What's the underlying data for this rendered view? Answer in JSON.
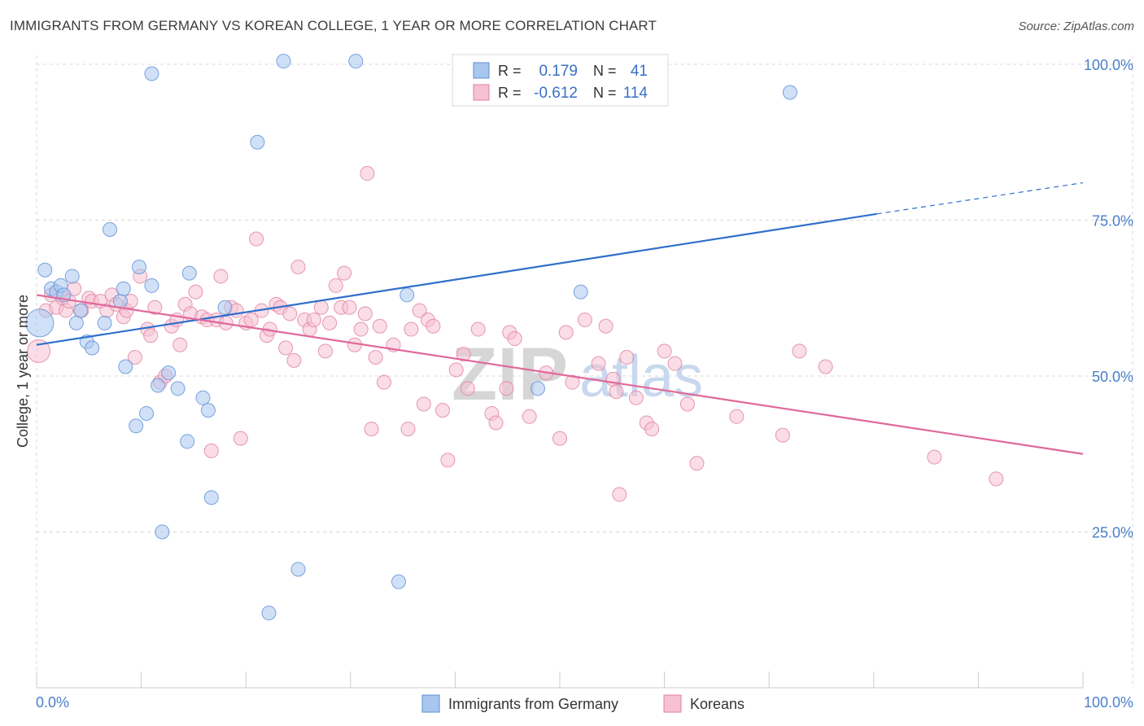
{
  "title": "IMMIGRANTS FROM GERMANY VS KOREAN COLLEGE, 1 YEAR OR MORE CORRELATION CHART",
  "source": "Source: ZipAtlas.com",
  "watermark": {
    "part1": "ZIP",
    "part2": "atlas"
  },
  "colors": {
    "blue_fill": "#a9c6ee",
    "blue_stroke": "#5b8fd6",
    "blue_line": "#2f6fcc",
    "pink_fill": "#f6c1d2",
    "pink_stroke": "#e07fa0",
    "pink_line": "#e0689a",
    "grid": "#d8d8d8",
    "axis_text": "#4a7fc9"
  },
  "stats": {
    "r_label": "R =",
    "n_label": "N =",
    "blue": {
      "r": "0.179",
      "n": "41"
    },
    "pink": {
      "r": "-0.612",
      "n": "114"
    }
  },
  "legend": {
    "blue": "Immigrants from Germany",
    "pink": "Koreans"
  },
  "chart_data": {
    "type": "scatter",
    "title": "IMMIGRANTS FROM GERMANY VS KOREAN COLLEGE, 1 YEAR OR MORE CORRELATION CHART",
    "xlabel": "",
    "ylabel": "College, 1 year or more",
    "xlim": [
      0,
      100
    ],
    "ylim": [
      0,
      102
    ],
    "x_tick_labels": [
      "0.0%",
      "100.0%"
    ],
    "y_ticks": [
      25,
      50,
      75,
      100
    ],
    "y_tick_labels": [
      "25.0%",
      "50.0%",
      "75.0%",
      "100.0%"
    ],
    "grid": true,
    "legend_position": "bottom-center",
    "series": [
      {
        "name": "Immigrants from Germany",
        "color": "blue",
        "trend": {
          "x0": 0,
          "y0": 55,
          "x1": 80.3,
          "y1": 76,
          "dashed_to_x": 100,
          "dashed_to_y": 81
        },
        "points": [
          [
            0.3,
            58.5,
            3
          ],
          [
            0.8,
            67,
            1
          ],
          [
            1.4,
            64,
            1
          ],
          [
            1.9,
            63.5,
            1
          ],
          [
            2.3,
            64.5,
            1
          ],
          [
            2.6,
            63,
            1
          ],
          [
            3.4,
            66,
            1
          ],
          [
            3.8,
            58.5,
            1
          ],
          [
            4.2,
            60.5,
            1
          ],
          [
            4.8,
            55.5,
            1
          ],
          [
            5.3,
            54.5,
            1
          ],
          [
            6.5,
            58.5,
            1
          ],
          [
            7.0,
            73.5,
            1
          ],
          [
            8.0,
            62,
            1
          ],
          [
            8.3,
            64,
            1
          ],
          [
            8.5,
            51.5,
            1
          ],
          [
            9.5,
            42,
            1
          ],
          [
            9.8,
            67.5,
            1
          ],
          [
            10.5,
            44,
            1
          ],
          [
            11.0,
            64.5,
            1
          ],
          [
            11.0,
            98.5,
            1
          ],
          [
            11.6,
            48.5,
            1
          ],
          [
            12.0,
            25,
            1
          ],
          [
            12.6,
            50.5,
            1
          ],
          [
            13.5,
            48,
            1
          ],
          [
            14.4,
            39.5,
            1
          ],
          [
            14.6,
            66.5,
            1
          ],
          [
            15.9,
            46.5,
            1
          ],
          [
            16.4,
            44.5,
            1
          ],
          [
            16.7,
            30.5,
            1
          ],
          [
            18.0,
            61,
            1
          ],
          [
            21.1,
            87.5,
            1
          ],
          [
            22.2,
            12,
            1
          ],
          [
            23.6,
            100.5,
            1
          ],
          [
            25.0,
            19,
            1
          ],
          [
            30.5,
            100.5,
            1
          ],
          [
            34.6,
            17,
            1
          ],
          [
            35.4,
            63,
            1
          ],
          [
            47.9,
            48,
            1
          ],
          [
            52.0,
            63.5,
            1
          ],
          [
            72.0,
            95.5,
            1
          ]
        ]
      },
      {
        "name": "Koreans",
        "color": "pink",
        "trend": {
          "x0": 0,
          "y0": 63,
          "x1": 100,
          "y1": 37.5
        },
        "points": [
          [
            0.2,
            54,
            2
          ],
          [
            0.9,
            60.5,
            1
          ],
          [
            1.4,
            63,
            1
          ],
          [
            1.9,
            61,
            1
          ],
          [
            2.5,
            62.5,
            1
          ],
          [
            2.8,
            60.5,
            1
          ],
          [
            3.1,
            62,
            1
          ],
          [
            3.6,
            64,
            1
          ],
          [
            4.3,
            60.5,
            1
          ],
          [
            5.0,
            62.5,
            1
          ],
          [
            5.3,
            62,
            1
          ],
          [
            6.1,
            62,
            1
          ],
          [
            6.7,
            60.5,
            1
          ],
          [
            7.2,
            63,
            1
          ],
          [
            7.6,
            61.5,
            1
          ],
          [
            8.3,
            59.5,
            1
          ],
          [
            8.6,
            60.5,
            1
          ],
          [
            9.0,
            62,
            1
          ],
          [
            9.4,
            53,
            1
          ],
          [
            9.9,
            66,
            1
          ],
          [
            10.6,
            57.5,
            1
          ],
          [
            10.9,
            56.5,
            1
          ],
          [
            11.3,
            61,
            1
          ],
          [
            11.8,
            49,
            1
          ],
          [
            12.3,
            50,
            1
          ],
          [
            12.9,
            58,
            1
          ],
          [
            13.4,
            59,
            1
          ],
          [
            13.7,
            55,
            1
          ],
          [
            14.2,
            61.5,
            1
          ],
          [
            14.7,
            60,
            1
          ],
          [
            15.2,
            63.5,
            1
          ],
          [
            15.8,
            59.5,
            1
          ],
          [
            16.3,
            59,
            1
          ],
          [
            16.7,
            38,
            1
          ],
          [
            17.2,
            59,
            1
          ],
          [
            17.6,
            66,
            1
          ],
          [
            18.1,
            58.5,
            1
          ],
          [
            18.6,
            61,
            1
          ],
          [
            19.1,
            60.5,
            1
          ],
          [
            19.5,
            40,
            1
          ],
          [
            20.0,
            58.5,
            1
          ],
          [
            20.5,
            59,
            1
          ],
          [
            21.0,
            72,
            1
          ],
          [
            21.5,
            60.5,
            1
          ],
          [
            22.0,
            56.5,
            1
          ],
          [
            22.3,
            57.5,
            1
          ],
          [
            22.9,
            61.5,
            1
          ],
          [
            23.3,
            61,
            1
          ],
          [
            23.8,
            54.5,
            1
          ],
          [
            24.2,
            60,
            1
          ],
          [
            24.6,
            52.5,
            1
          ],
          [
            25.0,
            67.5,
            1
          ],
          [
            25.6,
            59,
            1
          ],
          [
            26.1,
            57.5,
            1
          ],
          [
            26.5,
            59,
            1
          ],
          [
            27.2,
            61,
            1
          ],
          [
            27.6,
            54,
            1
          ],
          [
            28.0,
            58.5,
            1
          ],
          [
            28.6,
            64.5,
            1
          ],
          [
            29.1,
            61,
            1
          ],
          [
            29.4,
            66.5,
            1
          ],
          [
            29.9,
            61,
            1
          ],
          [
            30.4,
            55,
            1
          ],
          [
            31.0,
            57.5,
            1
          ],
          [
            31.4,
            60,
            1
          ],
          [
            31.6,
            82.5,
            1
          ],
          [
            32.0,
            41.5,
            1
          ],
          [
            32.4,
            53,
            1
          ],
          [
            32.8,
            58,
            1
          ],
          [
            33.2,
            49,
            1
          ],
          [
            34.1,
            55,
            1
          ],
          [
            35.5,
            41.5,
            1
          ],
          [
            35.8,
            57.5,
            1
          ],
          [
            36.6,
            60.5,
            1
          ],
          [
            37.0,
            45.5,
            1
          ],
          [
            37.4,
            59,
            1
          ],
          [
            37.9,
            58,
            1
          ],
          [
            38.8,
            44.5,
            1
          ],
          [
            39.3,
            36.5,
            1
          ],
          [
            40.1,
            51,
            1
          ],
          [
            40.8,
            53.5,
            1
          ],
          [
            41.2,
            48,
            1
          ],
          [
            42.2,
            57.5,
            1
          ],
          [
            43.5,
            44,
            1
          ],
          [
            43.9,
            42.5,
            1
          ],
          [
            44.9,
            48,
            1
          ],
          [
            45.2,
            57,
            1
          ],
          [
            45.7,
            56,
            1
          ],
          [
            47.1,
            43.5,
            1
          ],
          [
            48.7,
            50.5,
            1
          ],
          [
            50.0,
            40,
            1
          ],
          [
            50.6,
            57,
            1
          ],
          [
            51.2,
            49,
            1
          ],
          [
            52.4,
            59,
            1
          ],
          [
            53.7,
            52,
            1
          ],
          [
            54.4,
            58,
            1
          ],
          [
            55.1,
            49.5,
            1
          ],
          [
            55.4,
            47.5,
            1
          ],
          [
            55.7,
            31,
            1
          ],
          [
            56.4,
            53,
            1
          ],
          [
            57.3,
            46.5,
            1
          ],
          [
            58.3,
            42.5,
            1
          ],
          [
            58.8,
            41.5,
            1
          ],
          [
            60.0,
            54,
            1
          ],
          [
            61.0,
            52,
            1
          ],
          [
            62.2,
            45.5,
            1
          ],
          [
            63.1,
            36,
            1
          ],
          [
            66.9,
            43.5,
            1
          ],
          [
            71.3,
            40.5,
            1
          ],
          [
            72.9,
            54,
            1
          ],
          [
            75.4,
            51.5,
            1
          ],
          [
            85.8,
            37,
            1
          ],
          [
            91.7,
            33.5,
            1
          ]
        ]
      }
    ]
  }
}
